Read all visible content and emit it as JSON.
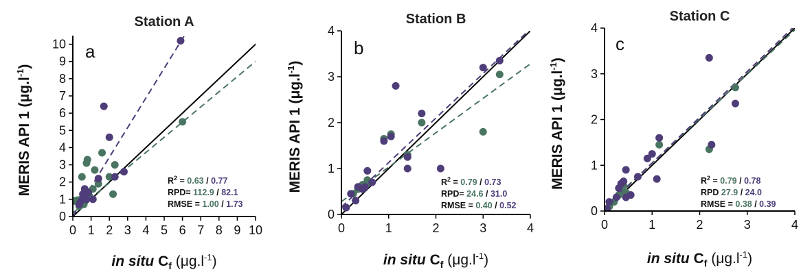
{
  "figure": {
    "xlabel_prefix": "in situ",
    "xlabel_symbol": "C",
    "xlabel_sub": "f",
    "xlabel_unit_pre": " (μg.l",
    "xlabel_unit_sup": "-1",
    "xlabel_unit_post": ")",
    "ylabel_main": "MERIS API 1 (μg.l",
    "ylabel_sup": "-1",
    "ylabel_post": ")",
    "stat_labels": {
      "r2": "R",
      "r2_sup": "2",
      "rpd": "RPD",
      "rmse": "RMSE"
    },
    "colors": {
      "green": "#4a7561",
      "purple": "#4e3d79",
      "line": "#000000"
    }
  },
  "chart_data": [
    {
      "type": "scatter",
      "title": "Station A",
      "panel_label": "a",
      "xlim": [
        0,
        10
      ],
      "ylim": [
        0,
        10.5
      ],
      "xticks": [
        "0",
        "1",
        "2",
        "3",
        "4",
        "5",
        "6",
        "7",
        "8",
        "9",
        "10"
      ],
      "yticks": [
        "0",
        "1",
        "2",
        "3",
        "4",
        "5",
        "6",
        "7",
        "8",
        "9",
        "10"
      ],
      "stats": {
        "r2": [
          "0.63",
          "0.77"
        ],
        "rpd": [
          "112.9",
          "82.1"
        ],
        "rmse": [
          "1.00",
          "1.73"
        ],
        "rpd_sep": "=",
        "stat_sep": "/"
      },
      "fit_lines": [
        {
          "series": "green",
          "slope": 0.88,
          "intercept": 0.2
        },
        {
          "series": "purple",
          "slope": 1.72,
          "intercept": 0.0
        }
      ],
      "series": [
        {
          "color": "green",
          "points": [
            [
              0.1,
              0.9
            ],
            [
              0.25,
              0.95
            ],
            [
              0.35,
              0.6
            ],
            [
              0.45,
              1.0
            ],
            [
              0.5,
              2.3
            ],
            [
              0.55,
              0.8
            ],
            [
              0.6,
              0.7
            ],
            [
              0.65,
              1.2
            ],
            [
              0.7,
              1.5
            ],
            [
              0.75,
              3.1
            ],
            [
              0.8,
              3.3
            ],
            [
              0.9,
              1.2
            ],
            [
              1.1,
              1.6
            ],
            [
              1.2,
              2.7
            ],
            [
              1.4,
              1.9
            ],
            [
              1.6,
              3.7
            ],
            [
              2.0,
              2.3
            ],
            [
              2.2,
              1.3
            ],
            [
              2.3,
              3.0
            ],
            [
              6.0,
              5.5
            ]
          ]
        },
        {
          "color": "purple",
          "points": [
            [
              0.35,
              0.7
            ],
            [
              0.45,
              0.9
            ],
            [
              0.55,
              1.3
            ],
            [
              0.65,
              1.6
            ],
            [
              0.75,
              1.0
            ],
            [
              0.85,
              1.4
            ],
            [
              1.1,
              1.0
            ],
            [
              1.4,
              2.2
            ],
            [
              1.7,
              6.4
            ],
            [
              2.0,
              4.6
            ],
            [
              2.3,
              2.3
            ],
            [
              2.8,
              2.6
            ],
            [
              5.9,
              10.2
            ]
          ]
        }
      ]
    },
    {
      "type": "scatter",
      "title": "Station B",
      "panel_label": "b",
      "xlim": [
        0,
        4
      ],
      "ylim": [
        0,
        4
      ],
      "xticks": [
        "0",
        "1",
        "2",
        "3",
        "4"
      ],
      "yticks": [
        "0",
        "1",
        "2",
        "3",
        "4"
      ],
      "stats": {
        "r2": [
          "0.79",
          "0.73"
        ],
        "rpd": [
          "24.6",
          "31.0"
        ],
        "rmse": [
          "0.40",
          "0.52"
        ],
        "rpd_sep": "=",
        "stat_sep": "/"
      },
      "fit_lines": [
        {
          "series": "green",
          "slope": 0.75,
          "intercept": 0.28
        },
        {
          "series": "purple",
          "slope": 0.97,
          "intercept": 0.16
        }
      ],
      "series": [
        {
          "color": "green",
          "points": [
            [
              0.1,
              0.15
            ],
            [
              0.25,
              0.45
            ],
            [
              0.35,
              0.55
            ],
            [
              0.45,
              0.65
            ],
            [
              0.55,
              0.75
            ],
            [
              0.6,
              0.7
            ],
            [
              0.9,
              1.65
            ],
            [
              1.05,
              1.75
            ],
            [
              1.4,
              1.3
            ],
            [
              1.7,
              2.0
            ],
            [
              3.0,
              1.8
            ],
            [
              3.35,
              3.05
            ]
          ]
        },
        {
          "color": "purple",
          "points": [
            [
              0.1,
              0.15
            ],
            [
              0.2,
              0.45
            ],
            [
              0.3,
              0.3
            ],
            [
              0.35,
              0.6
            ],
            [
              0.45,
              0.55
            ],
            [
              0.5,
              0.6
            ],
            [
              0.55,
              0.95
            ],
            [
              0.65,
              0.7
            ],
            [
              0.9,
              1.6
            ],
            [
              1.05,
              1.7
            ],
            [
              1.15,
              2.8
            ],
            [
              1.4,
              1.25
            ],
            [
              1.4,
              1.0
            ],
            [
              1.7,
              2.2
            ],
            [
              2.1,
              1.0
            ],
            [
              3.0,
              3.2
            ],
            [
              3.35,
              3.35
            ]
          ]
        }
      ]
    },
    {
      "type": "scatter",
      "title": "Station C",
      "panel_label": "c",
      "xlim": [
        0,
        4
      ],
      "ylim": [
        0,
        4
      ],
      "xticks": [
        "0",
        "1",
        "2",
        "3",
        "4"
      ],
      "yticks": [
        "0",
        "1",
        "2",
        "3",
        "4"
      ],
      "stats": {
        "r2": [
          "0.79",
          "0.78"
        ],
        "rpd": [
          "27.9",
          "24.0"
        ],
        "rmse": [
          "0.38",
          "0.39"
        ],
        "rpd_sep": "",
        "stat_sep": "/"
      },
      "fit_lines": [
        {
          "series": "green",
          "slope": 0.97,
          "intercept": 0.08
        },
        {
          "series": "purple",
          "slope": 1.0,
          "intercept": 0.05
        }
      ],
      "series": [
        {
          "color": "green",
          "points": [
            [
              0.1,
              0.1
            ],
            [
              0.2,
              0.2
            ],
            [
              0.3,
              0.35
            ],
            [
              0.4,
              0.55
            ],
            [
              0.45,
              0.4
            ],
            [
              0.55,
              0.35
            ],
            [
              1.15,
              1.45
            ],
            [
              2.2,
              1.35
            ],
            [
              2.75,
              2.7
            ]
          ]
        },
        {
          "color": "purple",
          "points": [
            [
              0.05,
              0.05
            ],
            [
              0.1,
              0.2
            ],
            [
              0.25,
              0.3
            ],
            [
              0.3,
              0.5
            ],
            [
              0.35,
              0.6
            ],
            [
              0.4,
              0.65
            ],
            [
              0.45,
              0.9
            ],
            [
              0.45,
              0.3
            ],
            [
              0.55,
              0.35
            ],
            [
              0.7,
              0.75
            ],
            [
              0.9,
              1.15
            ],
            [
              1.0,
              1.25
            ],
            [
              1.1,
              0.7
            ],
            [
              1.15,
              1.6
            ],
            [
              2.2,
              3.35
            ],
            [
              2.25,
              1.45
            ],
            [
              2.75,
              2.35
            ]
          ]
        }
      ]
    }
  ]
}
